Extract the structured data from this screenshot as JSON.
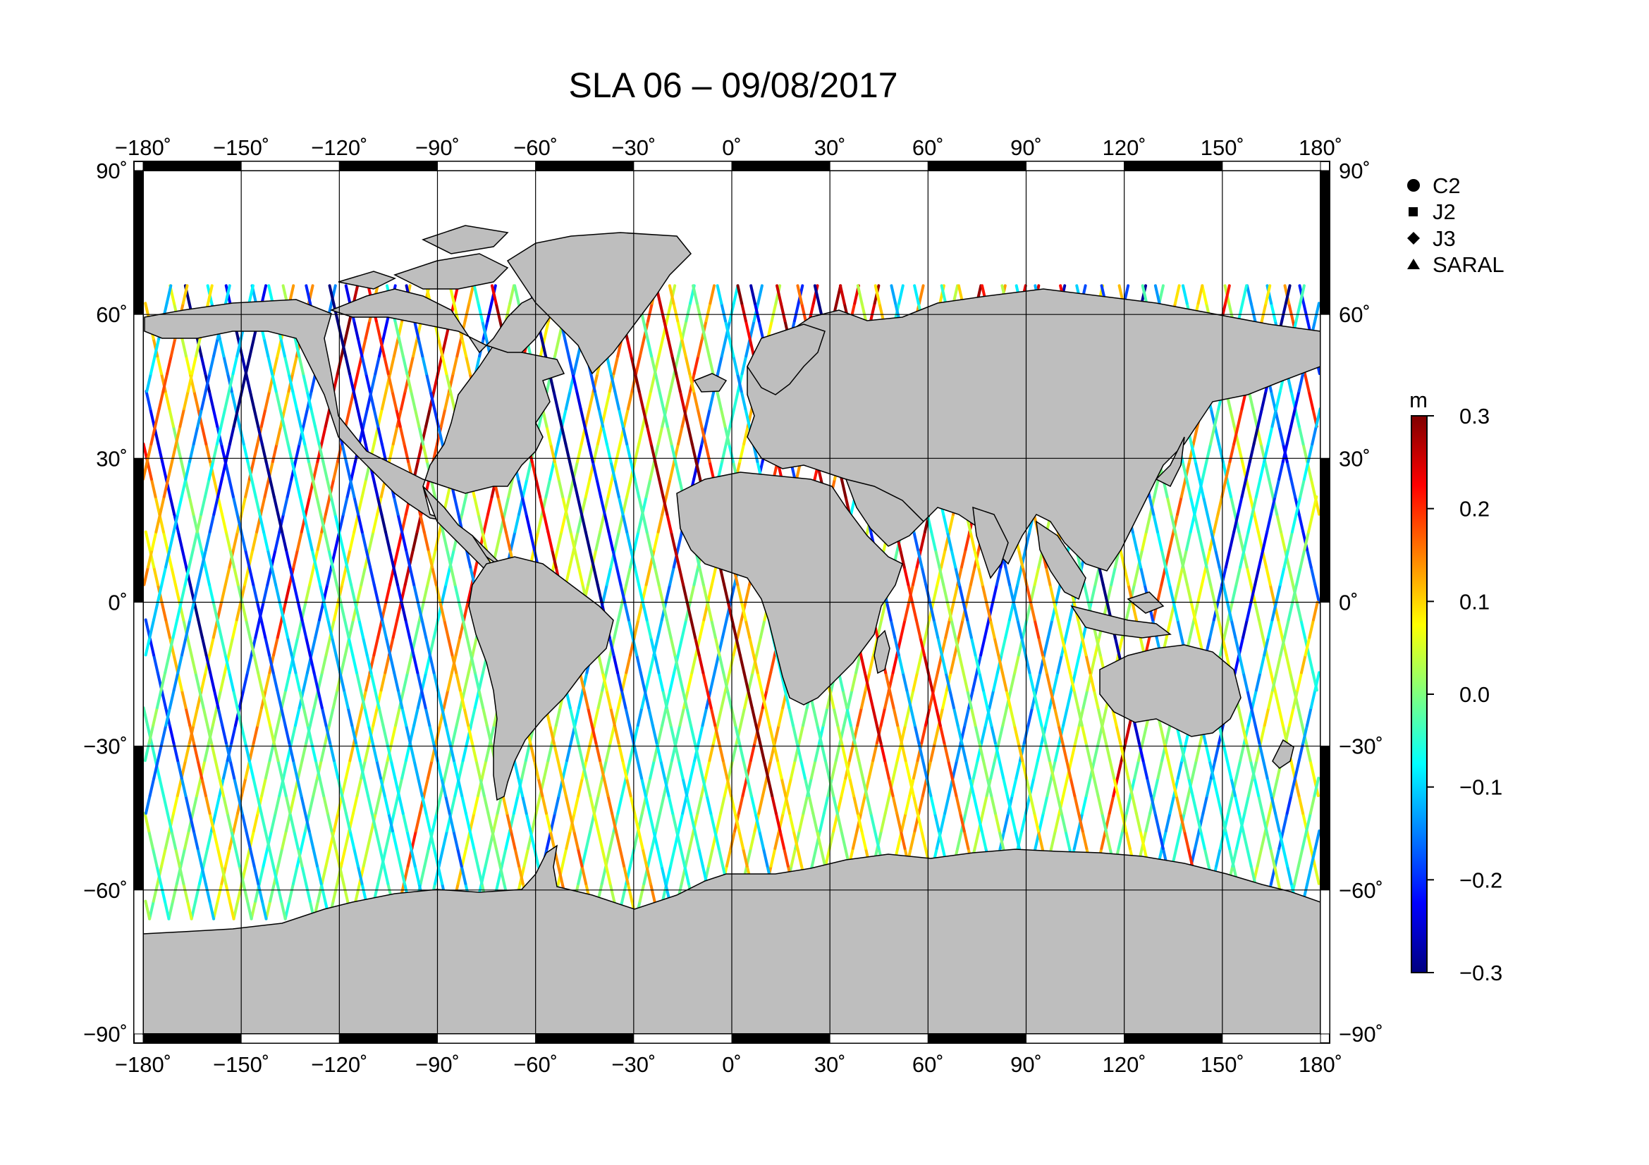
{
  "title": "SLA 06 – 09/08/2017",
  "axes": {
    "lon_ticks": [
      "−180˚",
      "−150˚",
      "−120˚",
      "−90˚",
      "−60˚",
      "−30˚",
      "0˚",
      "30˚",
      "60˚",
      "90˚",
      "120˚",
      "150˚",
      "180˚"
    ],
    "lon_values": [
      -180,
      -150,
      -120,
      -90,
      -60,
      -30,
      0,
      30,
      60,
      90,
      120,
      150,
      180
    ],
    "lat_ticks": [
      "90˚",
      "60˚",
      "30˚",
      "0˚",
      "−30˚",
      "−60˚",
      "−90˚"
    ],
    "lat_values": [
      90,
      60,
      30,
      0,
      -30,
      -60,
      -90
    ]
  },
  "legend": {
    "items": [
      {
        "label": "C2",
        "marker": "circle"
      },
      {
        "label": "J2",
        "marker": "square"
      },
      {
        "label": "J3",
        "marker": "diamond"
      },
      {
        "label": "SARAL",
        "marker": "triangle"
      }
    ]
  },
  "colorbar": {
    "unit": "m",
    "ticks": [
      "0.3",
      "0.2",
      "0.1",
      "0.0",
      "−0.1",
      "−0.2",
      "−0.3"
    ],
    "tick_values": [
      0.3,
      0.2,
      0.1,
      0.0,
      -0.1,
      -0.2,
      -0.3
    ],
    "range": [
      -0.3,
      0.3
    ],
    "colors": [
      "#00007f",
      "#0000ff",
      "#007fff",
      "#00ffff",
      "#7fff7f",
      "#ffff00",
      "#ff7f00",
      "#ff0000",
      "#7f0000"
    ]
  },
  "map": {
    "land_color": "#bebebe",
    "ocean_color": "#ffffff",
    "projection": "plate carree",
    "track_lat_limit": [
      -66,
      66
    ]
  }
}
